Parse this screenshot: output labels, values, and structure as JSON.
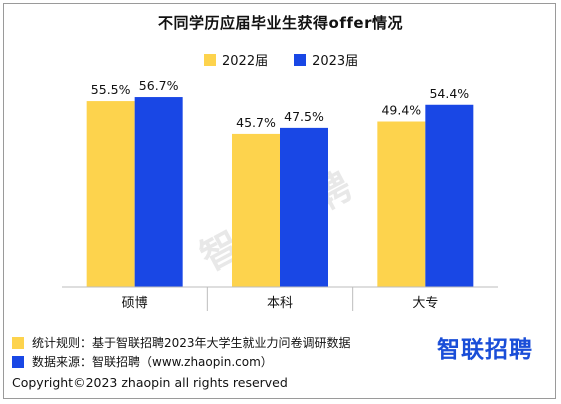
{
  "chart_data": {
    "type": "bar",
    "title": "不同学历应届毕业生获得offer情况",
    "categories": [
      "硕博",
      "本科",
      "大专"
    ],
    "series": [
      {
        "name": "2022届",
        "values": [
          55.5,
          45.7,
          49.4
        ],
        "labels": [
          "55.5%",
          "45.7%",
          "49.4%"
        ],
        "color": "#fdd34d"
      },
      {
        "name": "2023届",
        "values": [
          56.7,
          47.5,
          54.4
        ],
        "labels": [
          "56.7%",
          "47.5%",
          "54.4%"
        ],
        "color": "#1947e5"
      }
    ],
    "xlabel": "",
    "ylabel": "",
    "ylim": [
      0,
      60
    ],
    "grid": false,
    "legend_position": "top"
  },
  "notes": {
    "method": "统计规则：基于智联招聘2023年大学生就业力问卷调研数据",
    "source": "数据来源：智联招聘（www.zhaopin.com）"
  },
  "brand": {
    "logo_text": "智联招聘",
    "watermark_text": "智联招聘",
    "color": "#1a4ed8"
  },
  "copyright": "Copyright©2023 zhaopin all rights reserved"
}
